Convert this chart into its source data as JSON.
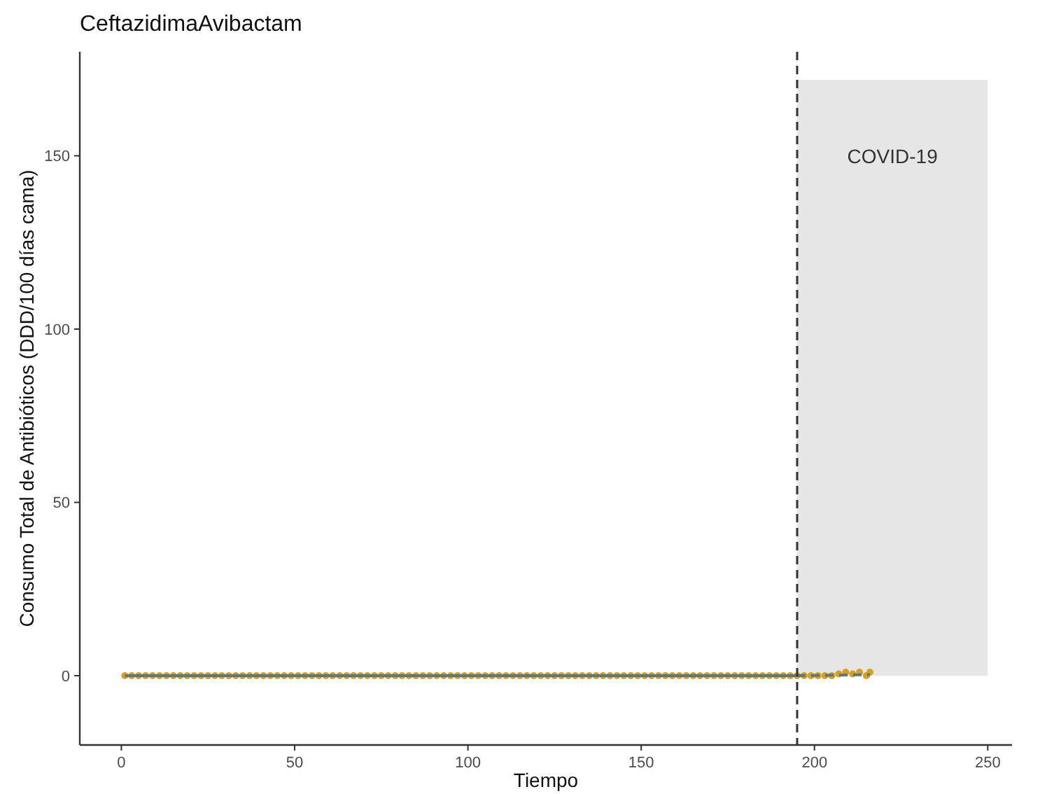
{
  "chart_data": {
    "type": "scatter",
    "title": "CeftazidimaAvibactam",
    "xlabel": "Tiempo",
    "ylabel": "Consumo Total de Antibióticos (DDD/100 días cama)",
    "xlim": [
      -12,
      257
    ],
    "ylim": [
      -20,
      180
    ],
    "xticks": [
      0,
      50,
      100,
      150,
      200,
      250
    ],
    "yticks": [
      0,
      50,
      100,
      150
    ],
    "grid": false,
    "series": [
      {
        "color": "#d4a020",
        "marker": "circle",
        "x": [
          1,
          3,
          5,
          7,
          9,
          11,
          13,
          15,
          17,
          19,
          21,
          23,
          25,
          27,
          29,
          31,
          33,
          35,
          37,
          39,
          41,
          43,
          45,
          47,
          49,
          51,
          53,
          55,
          57,
          59,
          61,
          63,
          65,
          67,
          69,
          71,
          73,
          75,
          77,
          79,
          81,
          83,
          85,
          87,
          89,
          91,
          93,
          95,
          97,
          99,
          101,
          103,
          105,
          107,
          109,
          111,
          113,
          115,
          117,
          119,
          121,
          123,
          125,
          127,
          129,
          131,
          133,
          135,
          137,
          139,
          141,
          143,
          145,
          147,
          149,
          151,
          153,
          155,
          157,
          159,
          161,
          163,
          165,
          167,
          169,
          171,
          173,
          175,
          177,
          179,
          181,
          183,
          185,
          187,
          189,
          191,
          193,
          195,
          197,
          199,
          201,
          203,
          205,
          207,
          209,
          211,
          213,
          215,
          216
        ],
        "values": [
          0,
          0,
          0,
          0,
          0,
          0,
          0,
          0,
          0,
          0,
          0,
          0,
          0,
          0,
          0,
          0,
          0,
          0,
          0,
          0,
          0,
          0,
          0,
          0,
          0,
          0,
          0,
          0,
          0,
          0,
          0,
          0,
          0,
          0,
          0,
          0,
          0,
          0,
          0,
          0,
          0,
          0,
          0,
          0,
          0,
          0,
          0,
          0,
          0,
          0,
          0,
          0,
          0,
          0,
          0,
          0,
          0,
          0,
          0,
          0,
          0,
          0,
          0,
          0,
          0,
          0,
          0,
          0,
          0,
          0,
          0,
          0,
          0,
          0,
          0,
          0,
          0,
          0,
          0,
          0,
          0,
          0,
          0,
          0,
          0,
          0,
          0,
          0,
          0,
          0,
          0,
          0,
          0,
          0,
          0,
          0,
          0,
          0,
          0,
          0,
          0,
          0,
          0,
          0.5,
          1,
          0.5,
          1,
          0,
          1
        ]
      },
      {
        "type": "line",
        "color": "#5f7580",
        "line_style": "solid",
        "marker": "none",
        "x": [
          1,
          195
        ],
        "values": [
          0,
          0
        ]
      },
      {
        "type": "line",
        "color": "#5f7580",
        "line_style": "dashed",
        "marker": "none",
        "x": [
          195,
          216
        ],
        "values": [
          0,
          0.3
        ]
      }
    ],
    "ref_lines": [
      {
        "axis": "x",
        "value": 195,
        "line_style": "dashed",
        "color": "#333333"
      }
    ],
    "bands": [
      {
        "axis": "x",
        "from": 195,
        "to": 250,
        "label": "COVID-19",
        "color": "#e6e6e6"
      }
    ]
  }
}
